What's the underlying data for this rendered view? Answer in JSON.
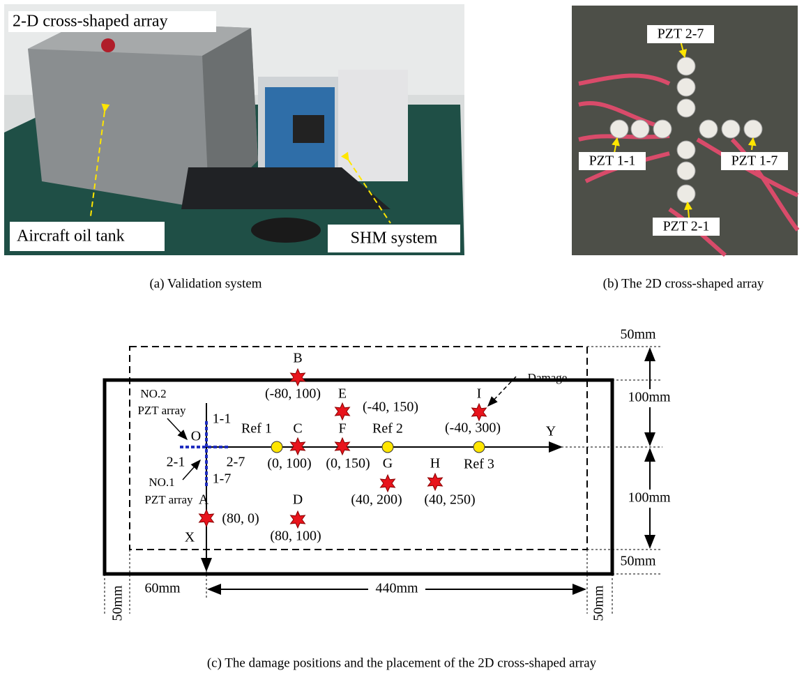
{
  "panel_a": {
    "labels": {
      "array": "2-D cross-shaped array",
      "tank": "Aircraft oil tank",
      "shm": "SHM system"
    },
    "caption": "(a) Validation system"
  },
  "panel_b": {
    "labels": [
      "PZT 2-7",
      "PZT 1-1",
      "PZT 1-7",
      "PZT 2-1"
    ],
    "caption": "(b) The 2D cross-shaped array"
  },
  "panel_c": {
    "damages": [
      {
        "name": "A",
        "coord": "(80, 0)"
      },
      {
        "name": "B",
        "coord": "(-80, 100)"
      },
      {
        "name": "C",
        "coord": "(0, 100)"
      },
      {
        "name": "D",
        "coord": "(80, 100)"
      },
      {
        "name": "E",
        "coord": "(-40, 150)"
      },
      {
        "name": "F",
        "coord": "(0, 150)"
      },
      {
        "name": "G",
        "coord": "(40, 200)"
      },
      {
        "name": "H",
        "coord": "(40, 250)"
      },
      {
        "name": "I",
        "coord": "(-40, 300)"
      }
    ],
    "references": [
      "Ref 1",
      "Ref 2",
      "Ref 3"
    ],
    "origin": "O",
    "x_axis": "X",
    "y_axis": "Y",
    "damage_label": "Damage",
    "array_labels": {
      "no2": [
        "NO.2",
        "PZT array"
      ],
      "no1": [
        "NO.1",
        "PZT array"
      ],
      "ends": [
        "1-1",
        "2-1",
        "2-7",
        "1-7"
      ]
    },
    "dimensions": [
      "50mm",
      "100mm",
      "100mm",
      "50mm",
      "60mm",
      "440mm",
      "50mm",
      "50mm"
    ],
    "caption": "(c) The damage positions and the placement of the 2D cross-shaped array"
  }
}
